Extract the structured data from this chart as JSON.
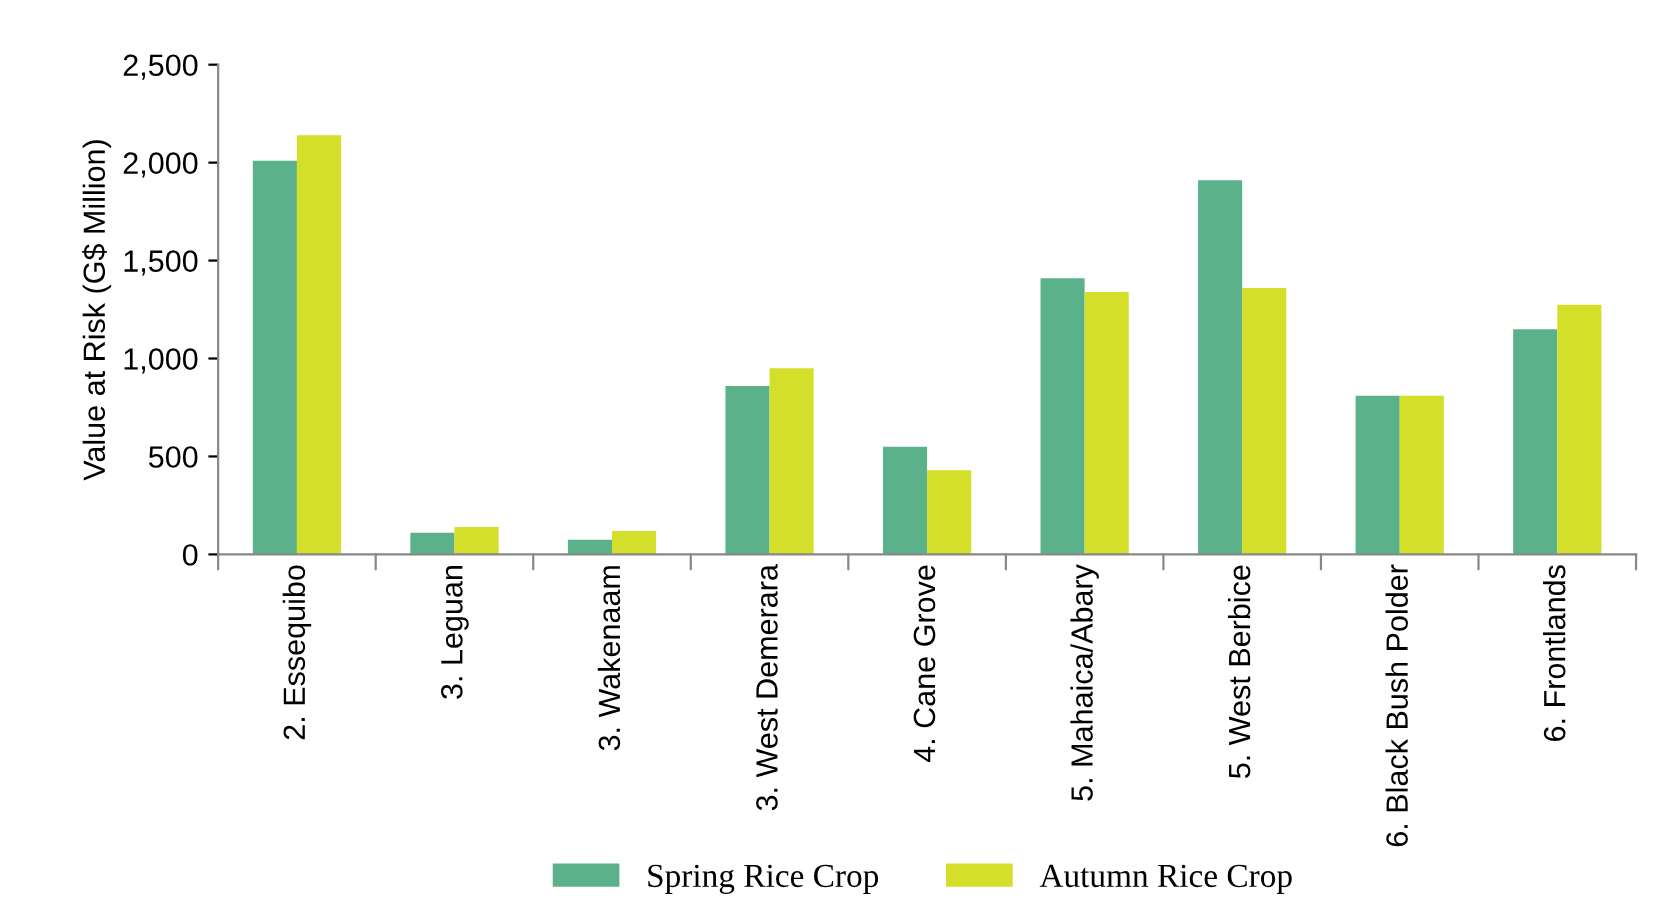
{
  "chart_data": {
    "type": "bar",
    "ylabel": "Value at Risk (G$ Million)",
    "categories": [
      "2. Essequibo",
      "3. Leguan",
      "3. Wakenaam",
      "3. West Demerara",
      "4. Cane Grove",
      "5. Mahaica/Abary",
      "5. West Berbice",
      "6. Black Bush Polder",
      "6. Frontlands"
    ],
    "series": [
      {
        "name": "Spring Rice Crop",
        "color": "#5bb28a",
        "values": [
          2010,
          110,
          75,
          860,
          550,
          1410,
          1910,
          810,
          1150
        ]
      },
      {
        "name": "Autumn Rice Crop",
        "color": "#d4df2a",
        "values": [
          2140,
          140,
          120,
          950,
          430,
          1340,
          1360,
          810,
          1275
        ]
      }
    ],
    "ylim": [
      0,
      2500
    ],
    "yticks": [
      0,
      {
        "value": 500,
        "label": "500"
      },
      {
        "value": 1000,
        "label": "1,000"
      },
      {
        "value": 1500,
        "label": "1,500"
      },
      {
        "value": 2000,
        "label": "2,000"
      },
      {
        "value": 2500,
        "label": "2,500"
      }
    ],
    "grid": false,
    "legend": "bottom"
  }
}
